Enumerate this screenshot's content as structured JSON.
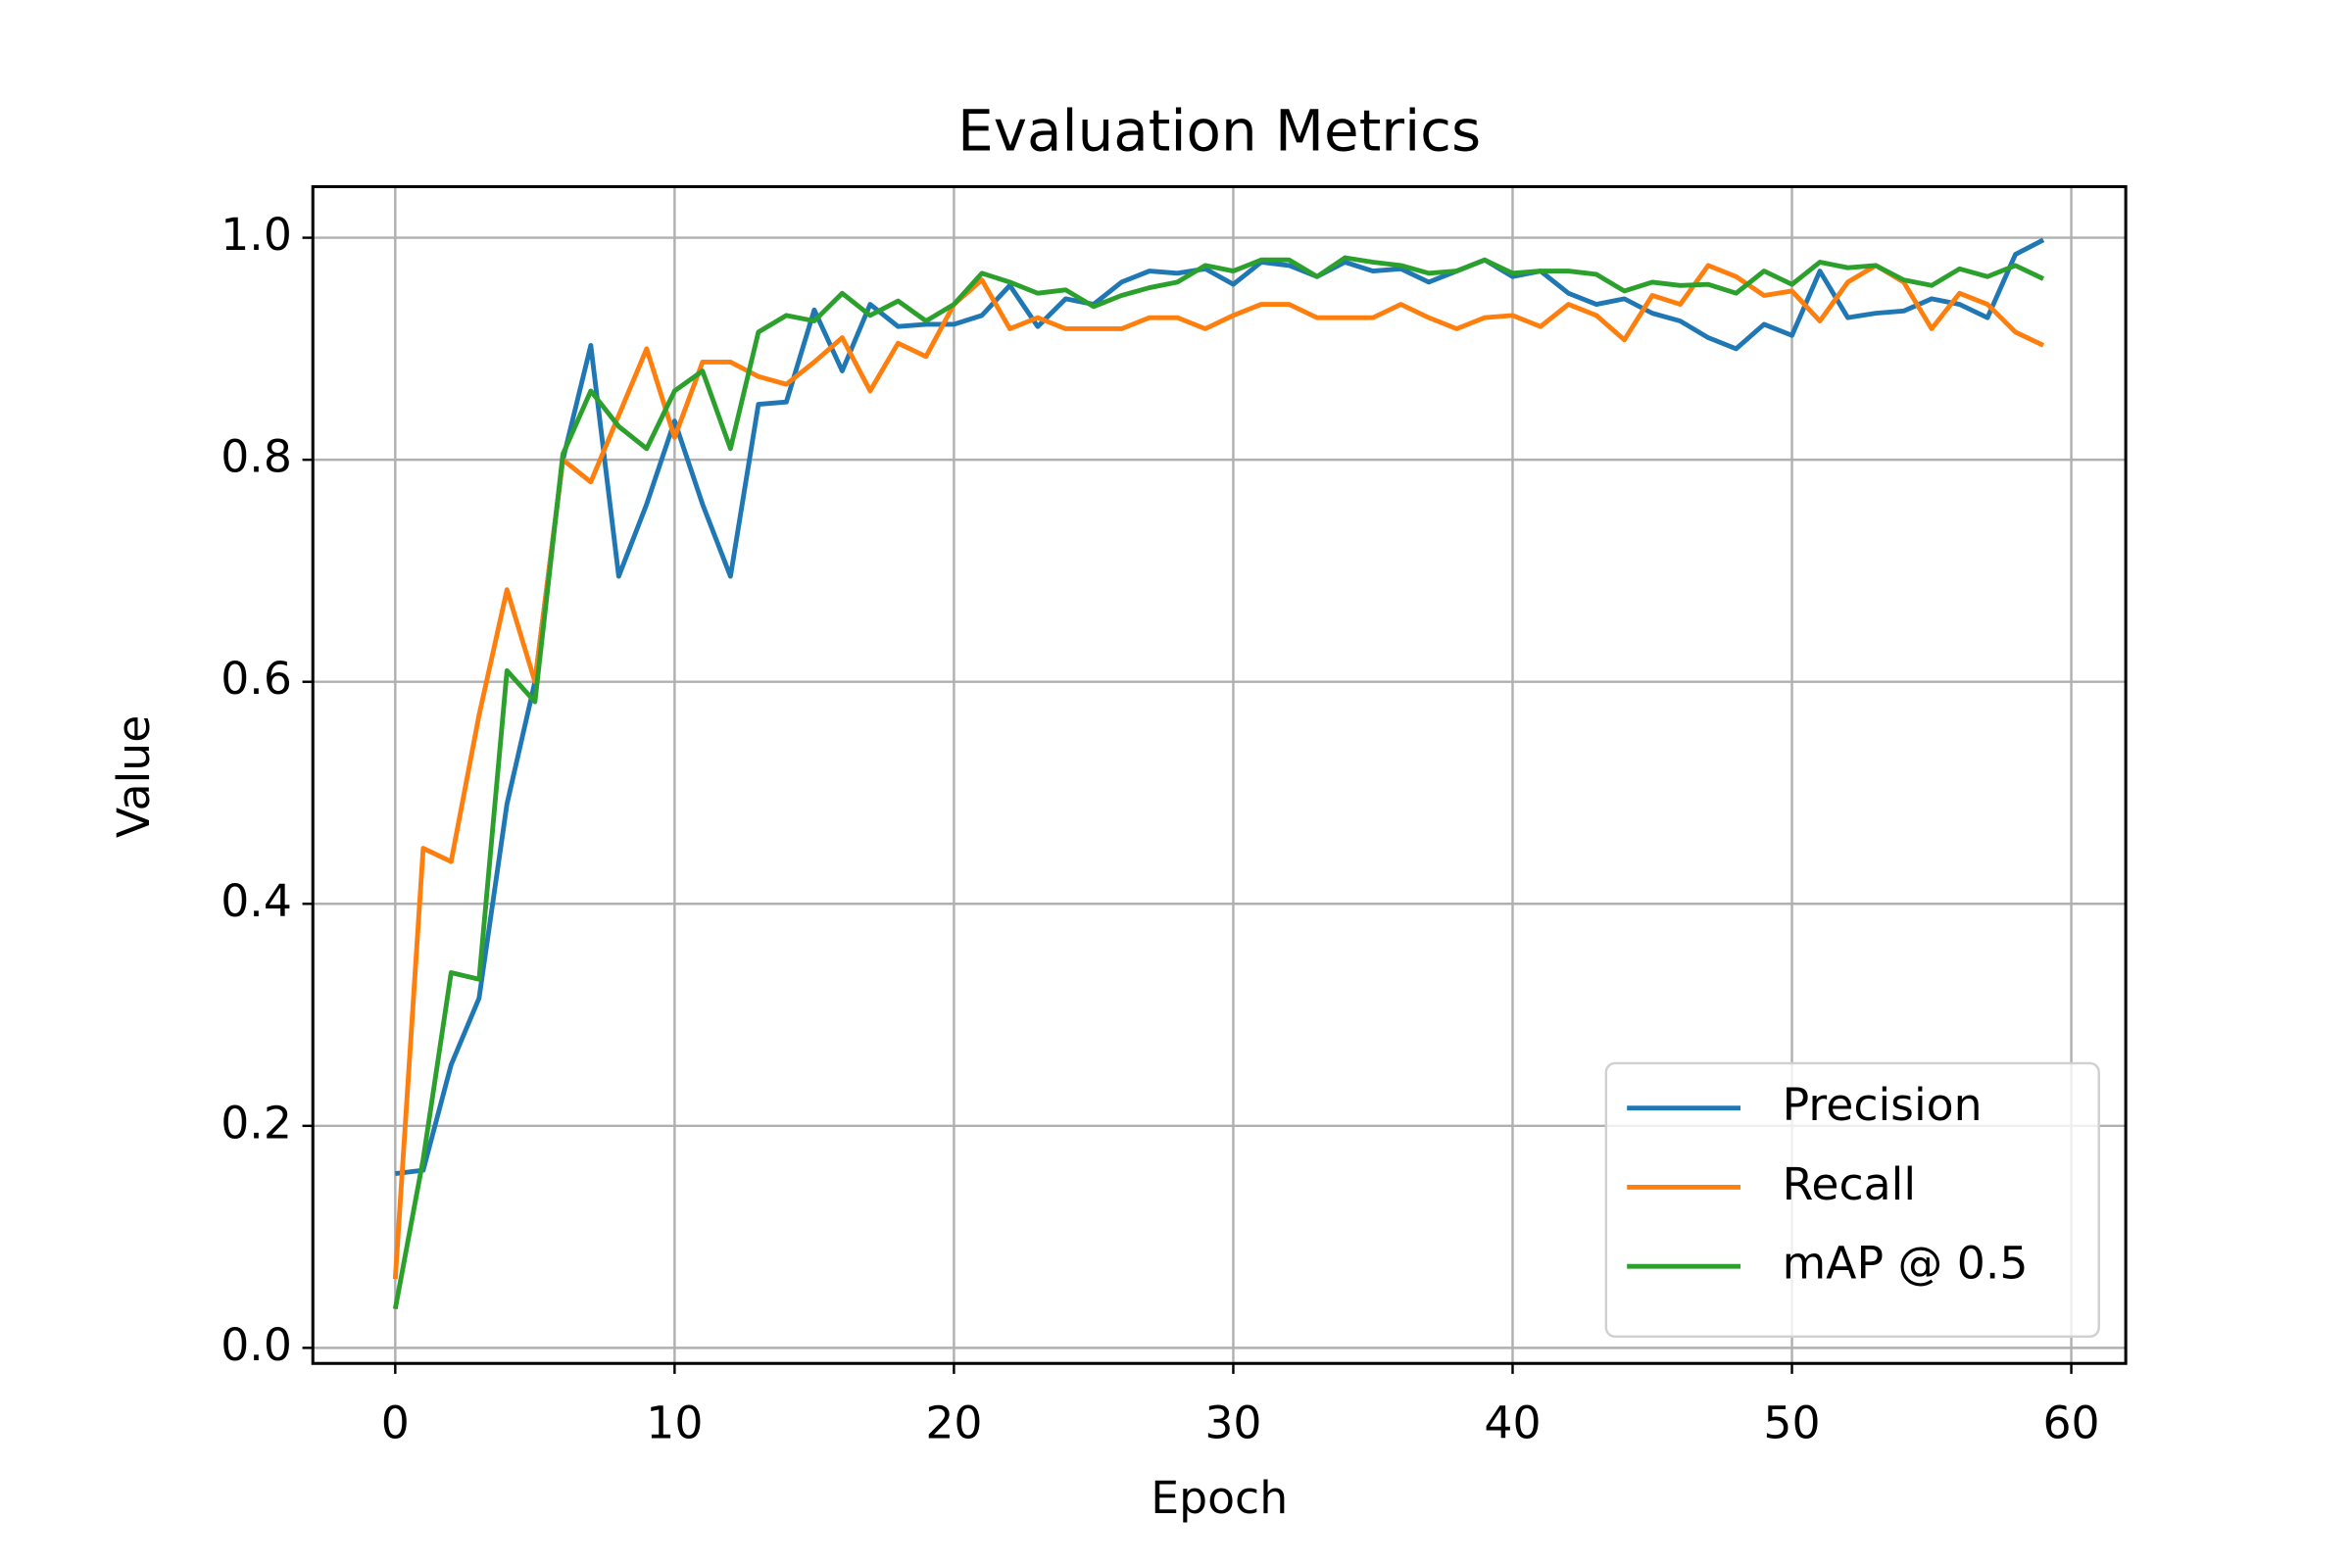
{
  "chart_data": {
    "type": "line",
    "title": "Evaluation Metrics",
    "x_label": "Epoch",
    "y_label": "Value",
    "x": [
      0,
      1,
      2,
      3,
      4,
      5,
      6,
      7,
      8,
      9,
      10,
      11,
      12,
      13,
      14,
      15,
      16,
      17,
      18,
      19,
      20,
      21,
      22,
      23,
      24,
      25,
      26,
      27,
      28,
      29,
      30,
      31,
      32,
      33,
      34,
      35,
      36,
      37,
      38,
      39,
      40,
      41,
      42,
      43,
      44,
      45,
      46,
      47,
      48,
      49,
      50,
      51,
      52,
      53,
      54,
      55,
      56,
      57,
      58,
      59
    ],
    "series": [
      {
        "name": "Precision",
        "color": "#1f77b4",
        "values": [
          0.157,
          0.16,
          0.255,
          0.315,
          0.49,
          0.6,
          0.8,
          0.903,
          0.695,
          0.76,
          0.835,
          0.76,
          0.695,
          0.85,
          0.852,
          0.935,
          0.88,
          0.94,
          0.92,
          0.922,
          0.922,
          0.93,
          0.957,
          0.92,
          0.945,
          0.94,
          0.96,
          0.97,
          0.968,
          0.972,
          0.958,
          0.978,
          0.975,
          0.965,
          0.978,
          0.97,
          0.972,
          0.96,
          0.97,
          0.98,
          0.965,
          0.97,
          0.95,
          0.94,
          0.945,
          0.932,
          0.925,
          0.91,
          0.9,
          0.922,
          0.912,
          0.97,
          0.928,
          0.932,
          0.934,
          0.945,
          0.94,
          0.928,
          0.985,
          0.998
        ]
      },
      {
        "name": "Recall",
        "color": "#ff7f0e",
        "values": [
          0.062,
          0.45,
          0.438,
          0.57,
          0.683,
          0.6,
          0.8,
          0.78,
          0.84,
          0.9,
          0.82,
          0.888,
          0.888,
          0.875,
          0.868,
          0.888,
          0.91,
          0.862,
          0.905,
          0.893,
          0.94,
          0.962,
          0.918,
          0.928,
          0.918,
          0.918,
          0.918,
          0.928,
          0.928,
          0.918,
          0.93,
          0.94,
          0.94,
          0.928,
          0.928,
          0.928,
          0.94,
          0.928,
          0.918,
          0.928,
          0.93,
          0.92,
          0.94,
          0.93,
          0.908,
          0.948,
          0.94,
          0.975,
          0.965,
          0.948,
          0.952,
          0.925,
          0.96,
          0.975,
          0.96,
          0.918,
          0.95,
          0.94,
          0.915,
          0.903
        ]
      },
      {
        "name": "mAP @ 0.5",
        "color": "#2ca02c",
        "values": [
          0.035,
          0.17,
          0.338,
          0.332,
          0.61,
          0.582,
          0.805,
          0.862,
          0.83,
          0.81,
          0.862,
          0.88,
          0.81,
          0.915,
          0.93,
          0.925,
          0.95,
          0.93,
          0.943,
          0.925,
          0.94,
          0.968,
          0.96,
          0.95,
          0.953,
          0.938,
          0.948,
          0.955,
          0.96,
          0.975,
          0.97,
          0.98,
          0.98,
          0.965,
          0.982,
          0.978,
          0.975,
          0.968,
          0.97,
          0.98,
          0.968,
          0.97,
          0.97,
          0.967,
          0.952,
          0.96,
          0.957,
          0.958,
          0.95,
          0.97,
          0.958,
          0.978,
          0.973,
          0.975,
          0.962,
          0.957,
          0.972,
          0.965,
          0.975,
          0.963
        ]
      }
    ],
    "xlim": [
      -2.95,
      61.95
    ],
    "ylim": [
      -0.014,
      1.046
    ],
    "xticks": [
      0,
      10,
      20,
      30,
      40,
      50,
      60
    ],
    "yticks": [
      {
        "value": 0,
        "label": "0.0"
      },
      0.2,
      0.4,
      0.6,
      0.8,
      {
        "value": 1,
        "label": "1.0"
      }
    ],
    "grid": true,
    "legend": "lower right"
  }
}
